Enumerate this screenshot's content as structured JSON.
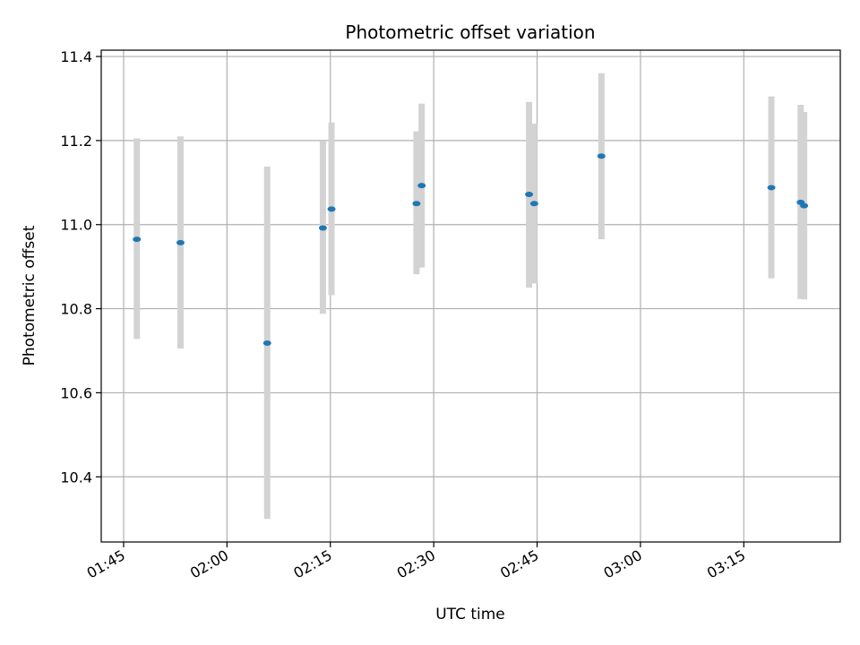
{
  "chart_data": {
    "type": "scatter",
    "title": "Photometric offset variation",
    "xlabel": "UTC time",
    "ylabel": "Photometric offset",
    "xlim": [
      "01:41:45",
      "03:29:00"
    ],
    "ylim": [
      10.245,
      11.415
    ],
    "grid": true,
    "x_ticks": [
      "01:45",
      "02:00",
      "02:15",
      "02:30",
      "02:45",
      "03:00",
      "03:15"
    ],
    "y_ticks": [
      "10.4",
      "10.6",
      "10.8",
      "11.0",
      "11.2",
      "11.4"
    ],
    "colors": {
      "point": "#1f77b4",
      "errorbar": "#d3d3d3",
      "grid": "#b0b0b0"
    },
    "points": [
      {
        "time": "01:46:55",
        "value": 10.965,
        "low": 10.728,
        "high": 11.205
      },
      {
        "time": "01:53:15",
        "value": 10.957,
        "low": 10.705,
        "high": 11.21
      },
      {
        "time": "02:05:50",
        "value": 10.718,
        "low": 10.3,
        "high": 11.138
      },
      {
        "time": "02:13:55",
        "value": 10.992,
        "low": 10.788,
        "high": 11.198
      },
      {
        "time": "02:15:10",
        "value": 11.037,
        "low": 10.832,
        "high": 11.243
      },
      {
        "time": "02:27:30",
        "value": 11.05,
        "low": 10.882,
        "high": 11.222
      },
      {
        "time": "02:28:15",
        "value": 11.093,
        "low": 10.898,
        "high": 11.288
      },
      {
        "time": "02:43:50",
        "value": 11.072,
        "low": 10.85,
        "high": 11.292
      },
      {
        "time": "02:44:35",
        "value": 11.05,
        "low": 10.86,
        "high": 11.24
      },
      {
        "time": "02:54:20",
        "value": 11.163,
        "low": 10.965,
        "high": 11.36
      },
      {
        "time": "03:19:00",
        "value": 11.088,
        "low": 10.872,
        "high": 11.305
      },
      {
        "time": "03:23:15",
        "value": 11.053,
        "low": 10.823,
        "high": 11.285
      },
      {
        "time": "03:23:45",
        "value": 11.045,
        "low": 10.822,
        "high": 11.268
      }
    ]
  }
}
